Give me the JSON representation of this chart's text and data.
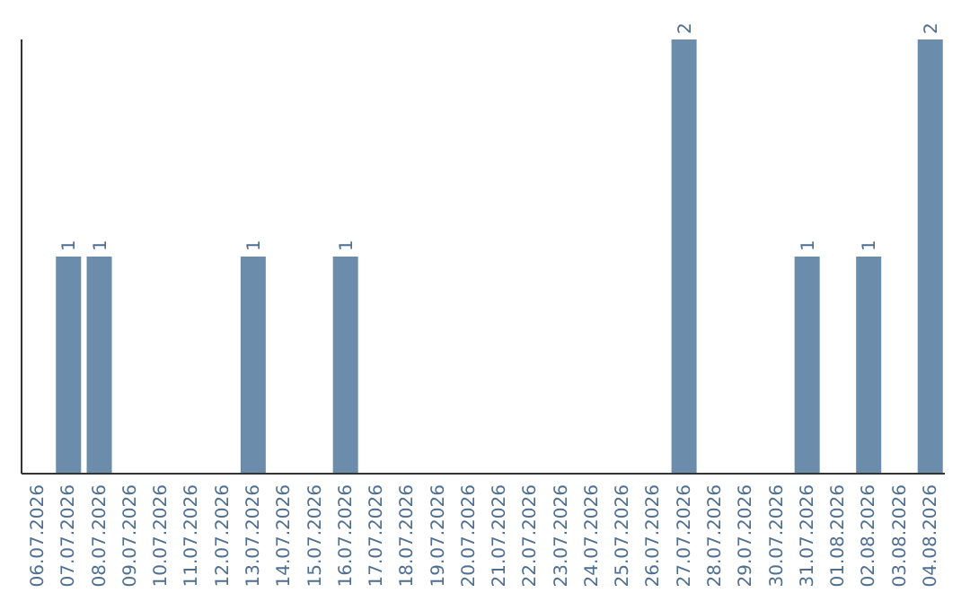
{
  "chart_data": {
    "type": "bar",
    "categories": [
      "06.07.2026",
      "07.07.2026",
      "08.07.2026",
      "09.07.2026",
      "10.07.2026",
      "11.07.2026",
      "12.07.2026",
      "13.07.2026",
      "14.07.2026",
      "15.07.2026",
      "16.07.2026",
      "17.07.2026",
      "18.07.2026",
      "19.07.2026",
      "20.07.2026",
      "21.07.2026",
      "22.07.2026",
      "23.07.2026",
      "24.07.2026",
      "25.07.2026",
      "26.07.2026",
      "27.07.2026",
      "28.07.2026",
      "29.07.2026",
      "30.07.2026",
      "31.07.2026",
      "01.08.2026",
      "02.08.2026",
      "03.08.2026",
      "04.08.2026"
    ],
    "values": [
      0,
      1,
      1,
      0,
      0,
      0,
      0,
      1,
      0,
      0,
      1,
      0,
      0,
      0,
      0,
      0,
      0,
      0,
      0,
      0,
      0,
      2,
      0,
      0,
      0,
      1,
      0,
      1,
      0,
      2
    ],
    "value_labels": [
      null,
      "1",
      "1",
      null,
      null,
      null,
      null,
      "1",
      null,
      null,
      "1",
      null,
      null,
      null,
      null,
      null,
      null,
      null,
      null,
      null,
      null,
      "2",
      null,
      null,
      null,
      "1",
      null,
      "1",
      null,
      "2"
    ],
    "color": "#6b8cab",
    "tick_labels": "x",
    "grid": false
  }
}
